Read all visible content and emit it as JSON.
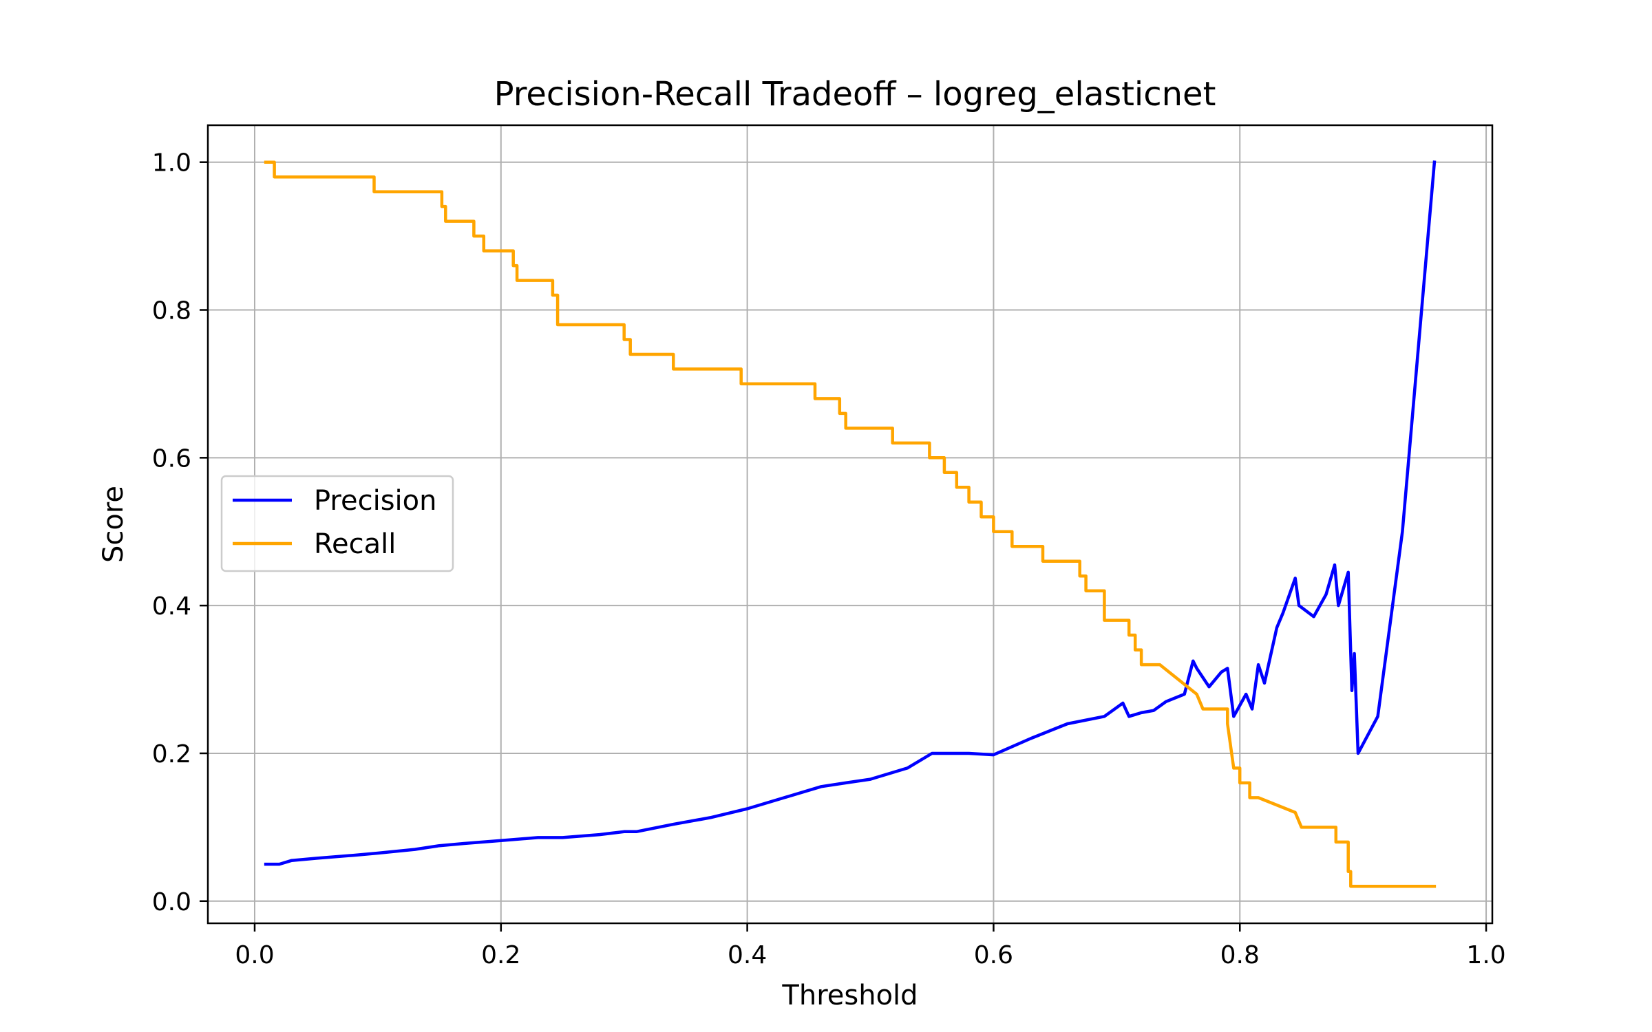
{
  "chart_data": {
    "type": "line",
    "title": "Precision-Recall Tradeoff – logreg_elasticnet",
    "xlabel": "Threshold",
    "ylabel": "Score",
    "xlim": [
      -0.038,
      1.005
    ],
    "ylim": [
      -0.03,
      1.05
    ],
    "xticks": [
      0.0,
      0.2,
      0.4,
      0.6,
      0.8,
      1.0
    ],
    "xtick_labels": [
      "0.0",
      "0.2",
      "0.4",
      "0.6",
      "0.8",
      "1.0"
    ],
    "yticks": [
      0.0,
      0.2,
      0.4,
      0.6,
      0.8,
      1.0
    ],
    "ytick_labels": [
      "0.0",
      "0.2",
      "0.4",
      "0.6",
      "0.8",
      "1.0"
    ],
    "grid": true,
    "legend_position": "center-left",
    "series": [
      {
        "name": "Precision",
        "color": "#0000ff",
        "x": [
          0.009,
          0.02,
          0.03,
          0.05,
          0.08,
          0.1,
          0.13,
          0.15,
          0.17,
          0.2,
          0.23,
          0.25,
          0.28,
          0.3,
          0.31,
          0.34,
          0.37,
          0.4,
          0.43,
          0.46,
          0.48,
          0.5,
          0.53,
          0.55,
          0.58,
          0.6,
          0.63,
          0.66,
          0.69,
          0.7,
          0.705,
          0.71,
          0.72,
          0.73,
          0.74,
          0.755,
          0.762,
          0.765,
          0.775,
          0.785,
          0.79,
          0.795,
          0.805,
          0.81,
          0.815,
          0.82,
          0.83,
          0.835,
          0.845,
          0.848,
          0.86,
          0.87,
          0.877,
          0.88,
          0.888,
          0.891,
          0.893,
          0.896,
          0.912,
          0.932,
          0.958
        ],
        "y": [
          0.05,
          0.05,
          0.055,
          0.058,
          0.062,
          0.065,
          0.07,
          0.075,
          0.078,
          0.082,
          0.086,
          0.086,
          0.09,
          0.094,
          0.094,
          0.104,
          0.113,
          0.125,
          0.14,
          0.155,
          0.16,
          0.165,
          0.18,
          0.2,
          0.2,
          0.198,
          0.22,
          0.24,
          0.25,
          0.262,
          0.268,
          0.25,
          0.255,
          0.258,
          0.27,
          0.28,
          0.325,
          0.315,
          0.29,
          0.31,
          0.315,
          0.25,
          0.28,
          0.26,
          0.32,
          0.295,
          0.37,
          0.39,
          0.437,
          0.4,
          0.385,
          0.415,
          0.455,
          0.4,
          0.445,
          0.285,
          0.335,
          0.2,
          0.25,
          0.5,
          1.0
        ]
      },
      {
        "name": "Recall",
        "color": "#ffa500",
        "x": [
          0.009,
          0.016,
          0.016,
          0.097,
          0.097,
          0.152,
          0.152,
          0.155,
          0.155,
          0.178,
          0.178,
          0.186,
          0.186,
          0.21,
          0.21,
          0.213,
          0.213,
          0.242,
          0.242,
          0.246,
          0.246,
          0.3,
          0.3,
          0.305,
          0.305,
          0.34,
          0.34,
          0.395,
          0.395,
          0.455,
          0.455,
          0.475,
          0.475,
          0.48,
          0.48,
          0.518,
          0.518,
          0.548,
          0.548,
          0.56,
          0.56,
          0.57,
          0.57,
          0.58,
          0.58,
          0.59,
          0.59,
          0.6,
          0.6,
          0.615,
          0.615,
          0.64,
          0.64,
          0.67,
          0.67,
          0.675,
          0.675,
          0.69,
          0.69,
          0.71,
          0.71,
          0.715,
          0.715,
          0.72,
          0.72,
          0.735,
          0.735,
          0.765,
          0.77,
          0.78,
          0.79,
          0.79,
          0.795,
          0.8,
          0.8,
          0.808,
          0.808,
          0.815,
          0.815,
          0.845,
          0.85,
          0.862,
          0.878,
          0.878,
          0.888,
          0.888,
          0.89,
          0.89,
          0.895,
          0.958
        ],
        "y": [
          1.0,
          1.0,
          0.98,
          0.98,
          0.96,
          0.96,
          0.94,
          0.94,
          0.92,
          0.92,
          0.9,
          0.9,
          0.88,
          0.88,
          0.86,
          0.86,
          0.84,
          0.84,
          0.82,
          0.82,
          0.78,
          0.78,
          0.76,
          0.76,
          0.74,
          0.74,
          0.72,
          0.72,
          0.7,
          0.7,
          0.68,
          0.68,
          0.66,
          0.66,
          0.64,
          0.64,
          0.62,
          0.62,
          0.6,
          0.6,
          0.58,
          0.58,
          0.56,
          0.56,
          0.54,
          0.54,
          0.52,
          0.52,
          0.5,
          0.5,
          0.48,
          0.48,
          0.46,
          0.46,
          0.44,
          0.44,
          0.42,
          0.42,
          0.38,
          0.38,
          0.36,
          0.36,
          0.34,
          0.34,
          0.32,
          0.32,
          0.32,
          0.28,
          0.26,
          0.26,
          0.26,
          0.24,
          0.18,
          0.18,
          0.16,
          0.16,
          0.14,
          0.14,
          0.14,
          0.12,
          0.1,
          0.1,
          0.1,
          0.08,
          0.08,
          0.04,
          0.04,
          0.02,
          0.02,
          0.02
        ]
      }
    ]
  }
}
